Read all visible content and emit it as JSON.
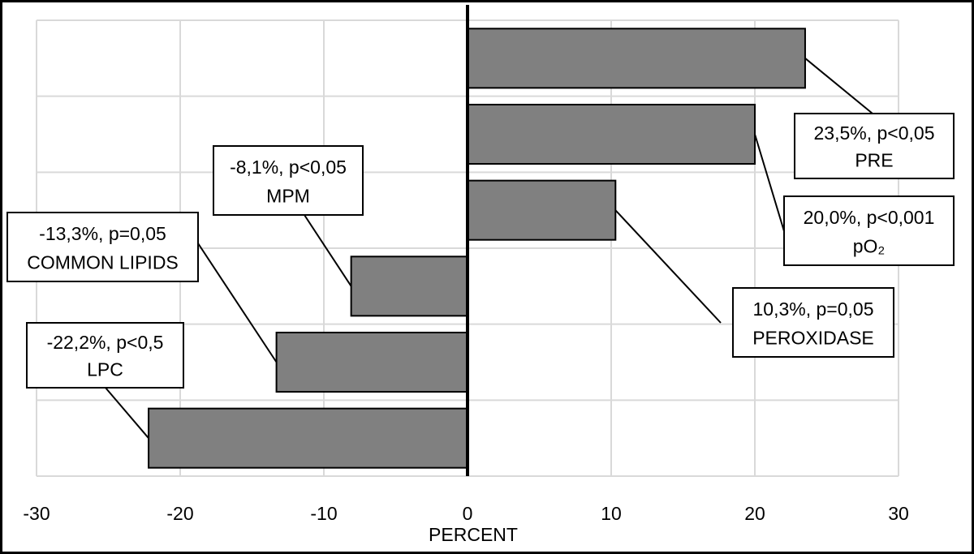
{
  "chart_data": {
    "type": "bar",
    "orientation": "horizontal",
    "xlabel": "PERCENT",
    "xlim": [
      -30,
      30
    ],
    "xticks": [
      "-30",
      "-20",
      "-10",
      "0",
      "10",
      "20",
      "30"
    ],
    "grid": true,
    "bar_color": "#808080",
    "bars": [
      {
        "value": 23.5,
        "label_line1": "23,5%, p<0,05",
        "label_line2": "PRE"
      },
      {
        "value": 20.0,
        "label_line1": "20,0%, p<0,001",
        "label_line2": "pO₂"
      },
      {
        "value": 10.3,
        "label_line1": "10,3%, p=0,05",
        "label_line2": "PEROXIDASE"
      },
      {
        "value": -8.1,
        "label_line1": "-8,1%, p<0,05",
        "label_line2": "MPM"
      },
      {
        "value": -13.3,
        "label_line1": "-13,3%, p=0,05",
        "label_line2": "COMMON LIPIDS"
      },
      {
        "value": -22.2,
        "label_line1": "-22,2%, p<0,5",
        "label_line2": "LPC"
      }
    ]
  }
}
